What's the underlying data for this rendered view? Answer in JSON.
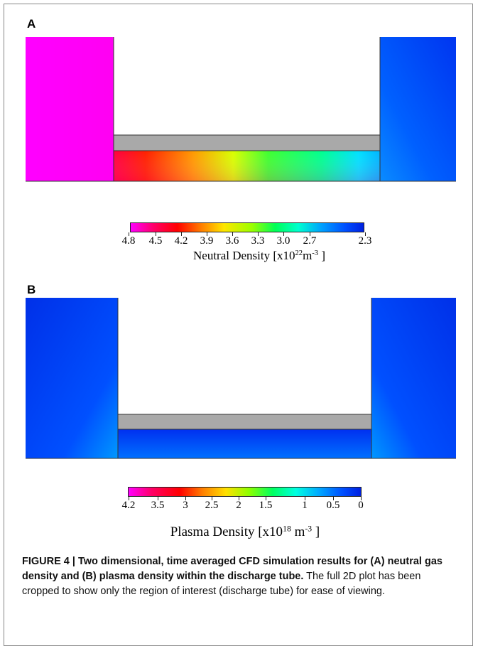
{
  "panels": {
    "a": {
      "label": "A"
    },
    "b": {
      "label": "B"
    }
  },
  "colorbars": {
    "neutral": {
      "ticks": [
        "4.8",
        "4.5",
        "4.2",
        "3.9",
        "3.6",
        "3.3",
        "3.0",
        "2.7",
        "2.3"
      ],
      "title_prefix": "Neutral Density [x10",
      "title_exp": "22",
      "title_unit": "m",
      "title_unit_exp": "-3",
      "title_suffix": " ]"
    },
    "plasma": {
      "ticks": [
        "4.2",
        "3.5",
        "3",
        "2.5",
        "2",
        "1.5",
        "1",
        "0.5",
        "0"
      ],
      "title_prefix": "Plasma Density [x10",
      "title_exp": "18",
      "title_unit": " m",
      "title_unit_exp": "-3",
      "title_suffix": " ]"
    }
  },
  "caption": {
    "bold": "FIGURE 4 | Two dimensional, time averaged CFD simulation results for (A) neutral gas density and (B) plasma density within the discharge tube.",
    "normal": " The full 2D plot has been cropped to show only the region of interest (discharge tube) for ease of viewing."
  }
}
